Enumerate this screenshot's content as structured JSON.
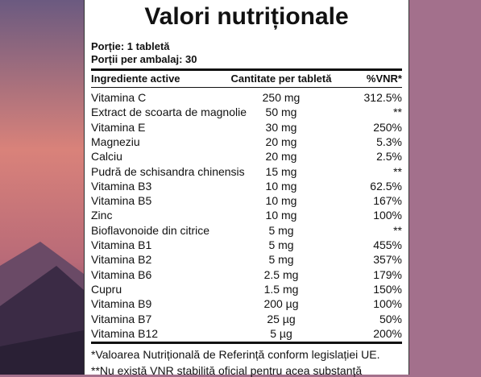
{
  "header": {
    "title": "Valori nutriționale",
    "serving": "Porție: 1 tabletă",
    "servings_per_pack": "Porții per ambalaj: 30"
  },
  "table": {
    "columns": [
      "Ingrediente active",
      "Cantitate per tabletă",
      "%VNR*"
    ],
    "rows": [
      [
        "Vitamina C",
        "250 mg",
        "312.5%"
      ],
      [
        "Extract de scoarta de magnolie",
        "50 mg",
        "**"
      ],
      [
        "Vitamina E",
        "30 mg",
        "250%"
      ],
      [
        "Magneziu",
        "20 mg",
        "5.3%"
      ],
      [
        "Calciu",
        "20 mg",
        "2.5%"
      ],
      [
        "Pudră de schisandra chinensis",
        "15 mg",
        "**"
      ],
      [
        "Vitamina B3",
        "10 mg",
        "62.5%"
      ],
      [
        "Vitamina B5",
        "10 mg",
        "167%"
      ],
      [
        "Zinc",
        "10 mg",
        "100%"
      ],
      [
        "Bioflavonoide din citrice",
        "5 mg",
        "**"
      ],
      [
        "Vitamina B1",
        "5 mg",
        "455%"
      ],
      [
        "Vitamina B2",
        "5 mg",
        "357%"
      ],
      [
        "Vitamina B6",
        "2.5 mg",
        "179%"
      ],
      [
        "Cupru",
        "1.5 mg",
        "150%"
      ],
      [
        "Vitamina B9",
        "200 µg",
        "100%"
      ],
      [
        "Vitamina B7",
        "25 µg",
        "50%"
      ],
      [
        "Vitamina B12",
        "5 µg",
        "200%"
      ]
    ]
  },
  "footnotes": [
    "*Valoarea Nutrițională de Referință conform legislației UE.",
    "**Nu există VNR stabilită oficial pentru acea substanță"
  ]
}
